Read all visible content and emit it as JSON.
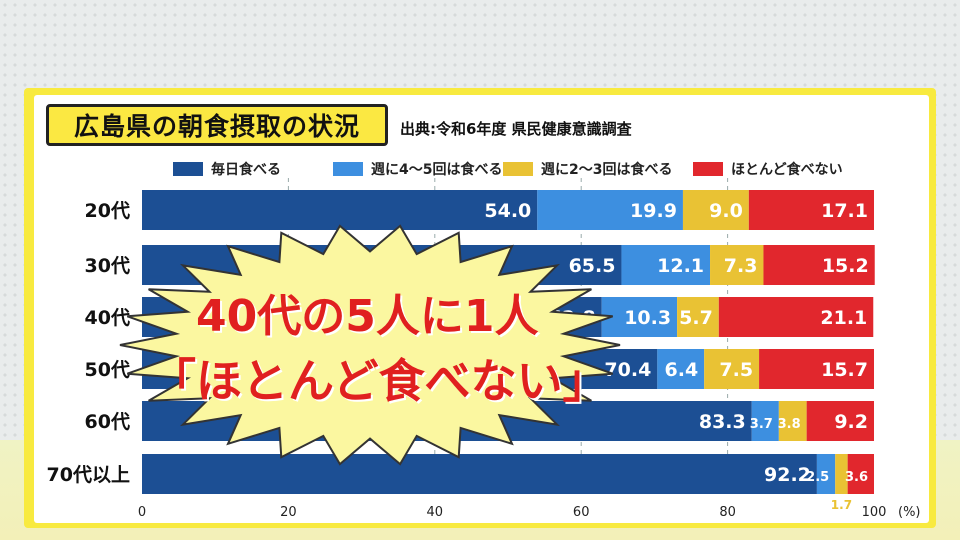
{
  "title": "広島県の朝食摂取の状況",
  "source": "出典:令和6年度 県民健康意識調査",
  "overlay": {
    "line1": "40代の5人に1人",
    "line2": "「ほとんど食べない」"
  },
  "chart_data": {
    "type": "bar",
    "orientation": "horizontal",
    "stacked": true,
    "categories": [
      "20代",
      "30代",
      "40代",
      "50代",
      "60代",
      "70代以上"
    ],
    "series": [
      {
        "name": "毎日食べる",
        "color": "#1c4f94",
        "values": [
          54.0,
          65.5,
          62.8,
          70.4,
          83.3,
          92.2
        ],
        "labels": [
          "54.0",
          "65.5",
          "62.8",
          "70.4",
          "83.3",
          "92.2"
        ]
      },
      {
        "name": "週に4～5回は食べる",
        "color": "#3d8fe0",
        "values": [
          19.9,
          12.1,
          10.3,
          6.4,
          3.7,
          2.5
        ],
        "labels": [
          "19.9",
          "12.1",
          "10.3",
          "6.4",
          "3.7",
          "2.5"
        ]
      },
      {
        "name": "週に2～3回は食べる",
        "color": "#e9c234",
        "values": [
          9.0,
          7.3,
          5.7,
          7.5,
          3.8,
          1.7
        ],
        "labels": [
          "9.0",
          "7.3",
          "5.7",
          "7.5",
          "3.8",
          "1.7"
        ]
      },
      {
        "name": "ほとんど食べない",
        "color": "#e1272d",
        "values": [
          17.1,
          15.2,
          21.1,
          15.7,
          9.2,
          3.6
        ],
        "labels": [
          "17.1",
          "15.2",
          "21.1",
          "15.7",
          "9.2",
          "3.6"
        ]
      }
    ],
    "xlim": [
      0,
      100
    ],
    "xticks": [
      "0",
      "20",
      "40",
      "60",
      "80",
      "100"
    ],
    "xunit": "(%)",
    "grid": true
  }
}
